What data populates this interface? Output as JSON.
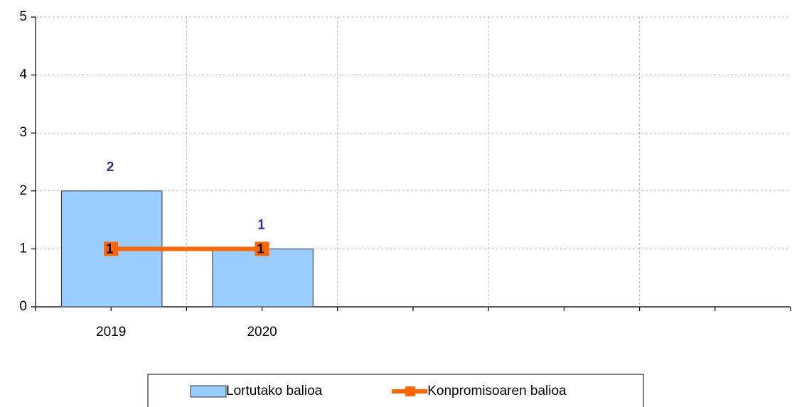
{
  "chart_data": {
    "type": "combo",
    "categories": [
      "2019",
      "2020",
      null,
      null,
      null
    ],
    "series": [
      {
        "name": "Lortutako balioa",
        "type": "bar",
        "color": "#99ccff",
        "label_color": "#333399",
        "values": [
          2,
          1,
          null,
          null,
          null
        ]
      },
      {
        "name": "Konpromisoaren balioa",
        "type": "line",
        "color": "#ff6600",
        "label_color": "#000000",
        "values": [
          1,
          1,
          null,
          null,
          null
        ]
      }
    ],
    "ylim": [
      0,
      5
    ],
    "yticks": [
      0,
      1,
      2,
      3,
      4,
      5
    ],
    "grid": true,
    "legend": "bottom"
  }
}
